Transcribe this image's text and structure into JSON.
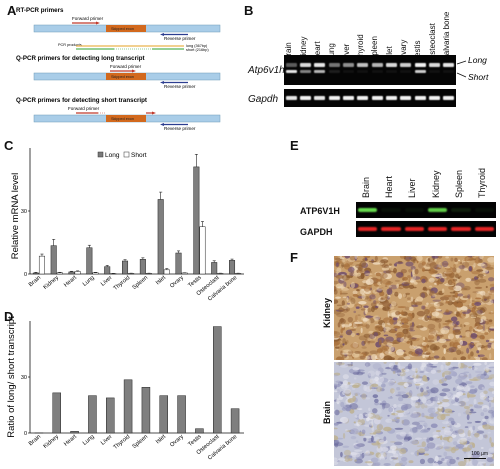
{
  "panels": {
    "A": {
      "letter": "A",
      "sections": [
        {
          "title": "RT-PCR primers",
          "forward": "Forward primer",
          "skipped": "Skipped exon",
          "reverse": "Reverse primer",
          "products_label": "PCR products",
          "long": "long (367bp)",
          "short": "short (216bp)"
        },
        {
          "title": "Q-PCR primers for detecting long transcript",
          "forward": "Forward primer",
          "skipped": "Skipped exon",
          "reverse": "Reverse primer"
        },
        {
          "title": "Q-PCR primers for detecting short transcript",
          "forward": "Forward primer",
          "skipped": "Skipped exon",
          "reverse": "Reverse primer"
        }
      ]
    },
    "B": {
      "letter": "B",
      "lanes": [
        "Brain",
        "Kidney",
        "Heart",
        "Lung",
        "Liver",
        "Thyroid",
        "Spleen",
        "Islet",
        "Ovary",
        "Testis",
        "Osteoclast",
        "Calvaria bone"
      ],
      "gene1": "Atp6v1h",
      "gene2": "Gapdh",
      "long_label": "Long",
      "short_label": "Short",
      "long_intensity": [
        0.35,
        0.85,
        0.9,
        0.45,
        0.55,
        0.75,
        0.7,
        0.85,
        0.8,
        0.95,
        0.85,
        0.9
      ],
      "short_intensity": [
        0.9,
        0.5,
        0.7,
        0.1,
        0.05,
        0.05,
        0.05,
        0.05,
        0.05,
        0.8,
        0.05,
        0.05
      ],
      "gapdh_intensity": [
        0.9,
        0.95,
        0.9,
        0.95,
        0.95,
        0.95,
        0.95,
        0.95,
        0.95,
        0.95,
        0.95,
        0.95
      ]
    },
    "C": {
      "letter": "C",
      "legend_long": "Long",
      "legend_short": "Short"
    },
    "D": {
      "letter": "D"
    },
    "E": {
      "letter": "E",
      "lanes": [
        "Brain",
        "Heart",
        "Liver",
        "Kidney",
        "Spleen",
        "Thyroid"
      ],
      "protein": "ATP6V1H",
      "loading": "GAPDH",
      "green_intensity": [
        0.85,
        0.05,
        0.05,
        0.8,
        0.1,
        0.05
      ],
      "red_intensity": [
        0.9,
        0.9,
        0.9,
        0.9,
        0.9,
        0.9
      ]
    },
    "F": {
      "letter": "F",
      "top_label": "Kidney",
      "bottom_label": "Brain",
      "scalebar": "100 µm"
    }
  },
  "chart_data": [
    {
      "type": "bar",
      "panel": "C",
      "categories": [
        "Brain",
        "Kidney",
        "Heart",
        "Lung",
        "Liver",
        "Thyroid",
        "Spleen",
        "Islet",
        "Ovary",
        "Testis",
        "Osteoclast",
        "Calvaria bone"
      ],
      "series": [
        {
          "name": "Long",
          "values": [
            0.5,
            13.5,
            1.0,
            12.5,
            3.5,
            6.2,
            7.0,
            35.5,
            10.0,
            51.0,
            5.5,
            6.5
          ],
          "errors": [
            0.3,
            3.0,
            0.3,
            1.2,
            0.6,
            0.6,
            0.7,
            3.5,
            1.0,
            6.0,
            0.8,
            0.6
          ]
        },
        {
          "name": "Short",
          "values": [
            8.5,
            0.6,
            1.2,
            0.6,
            0.2,
            0.3,
            0.3,
            2.0,
            0.5,
            22.5,
            0.3,
            0.3
          ],
          "errors": [
            1.0,
            0.2,
            0.3,
            0.2,
            0.1,
            0.1,
            0.1,
            0.6,
            0.1,
            2.5,
            0.1,
            0.1
          ]
        }
      ],
      "ylabel": "Relative mRNA level",
      "ylim": [
        0,
        60
      ],
      "yticks": [
        0,
        30
      ],
      "legend": "top"
    },
    {
      "type": "bar",
      "panel": "D",
      "categories": [
        "Brain",
        "Kidney",
        "Heart",
        "Lung",
        "Liver",
        "Thyroid",
        "Spleen",
        "Islet",
        "Ovary",
        "Testis",
        "Osteoclast",
        "Calvaria bone"
      ],
      "values": [
        0.1,
        21.5,
        0.9,
        20.0,
        18.8,
        28.5,
        24.5,
        20.0,
        20.0,
        2.3,
        57.0,
        13.0
      ],
      "ylabel": "Ratio of long/ short transcript",
      "ylim": [
        0,
        60
      ],
      "yticks": [
        0,
        30
      ]
    }
  ]
}
